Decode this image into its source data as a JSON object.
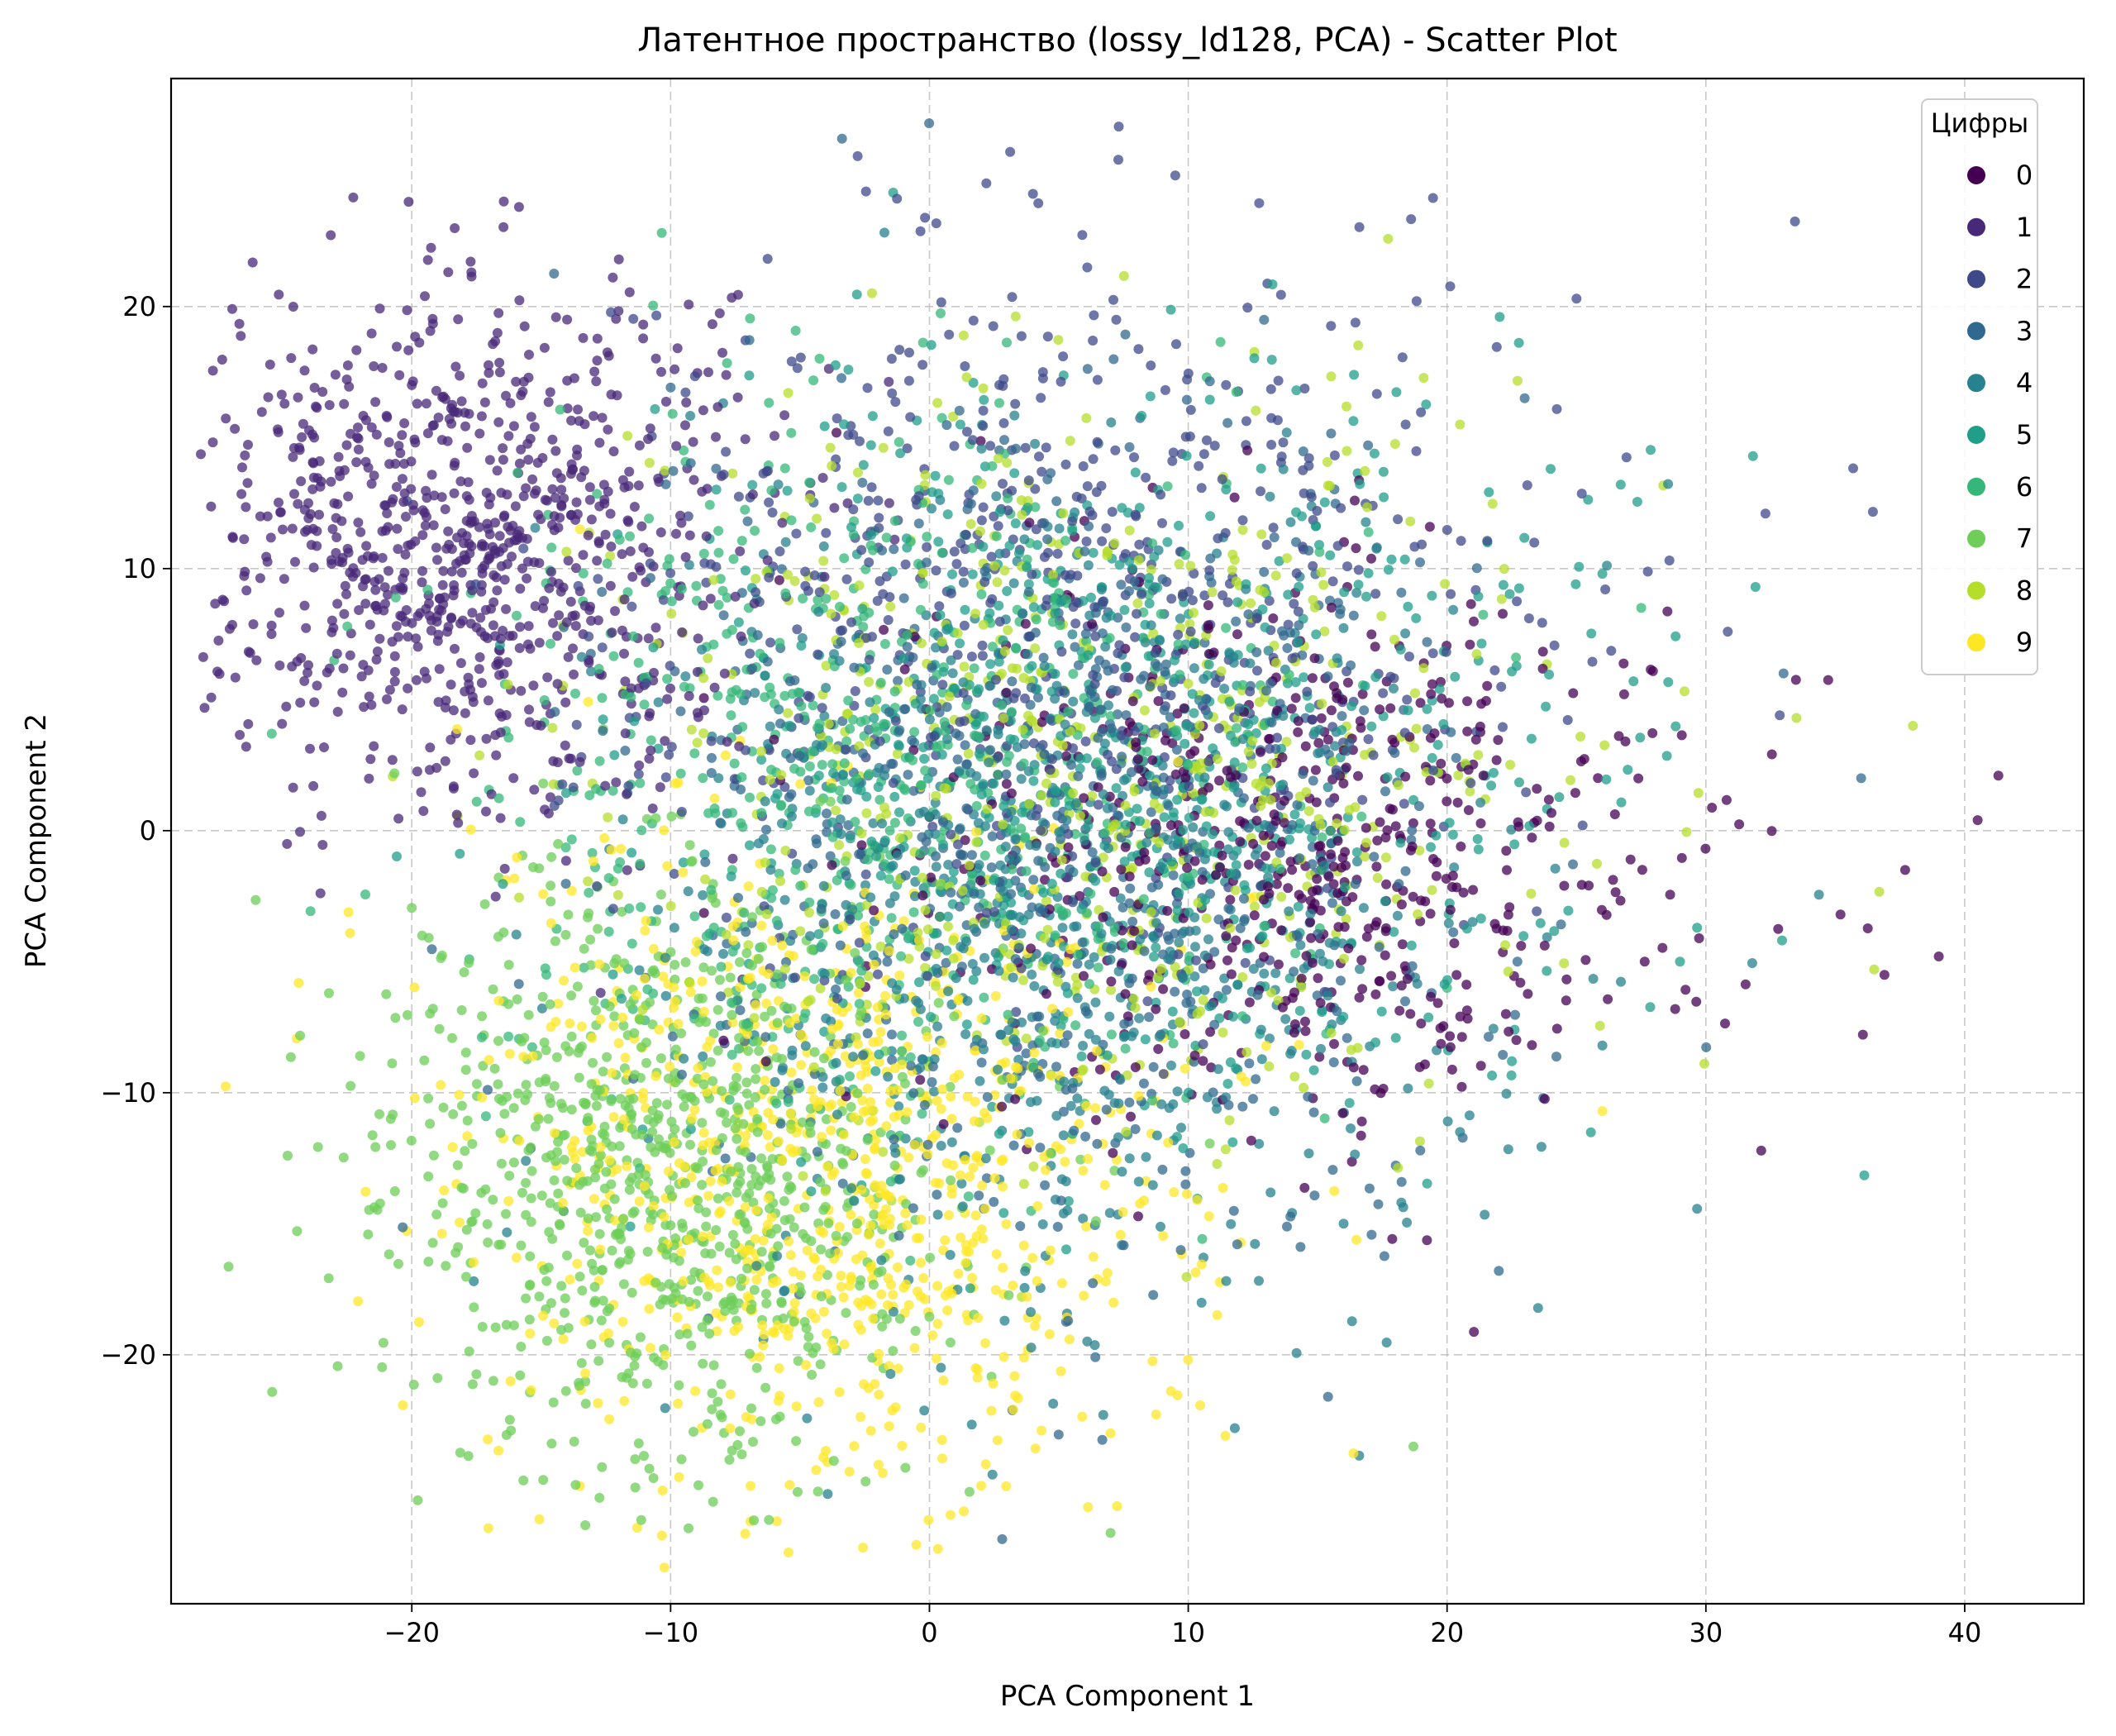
{
  "chart_data": {
    "type": "scatter",
    "title": "Латентное пространство (lossy_ld128, PCA) - Scatter Plot",
    "xlabel": "PCA Component 1",
    "ylabel": "PCA Component 2",
    "xlim": [
      -29.3,
      44.6
    ],
    "ylim": [
      -29.5,
      28.7
    ],
    "xticks": [
      -20,
      -10,
      0,
      10,
      20,
      30,
      40
    ],
    "yticks": [
      -20,
      -10,
      0,
      10,
      20
    ],
    "xtick_labels": [
      "−20",
      "−10",
      "0",
      "10",
      "20",
      "30",
      "40"
    ],
    "ytick_labels": [
      "−20",
      "−10",
      "0",
      "10",
      "20"
    ],
    "grid": true,
    "legend": {
      "title": "Цифры",
      "placement": "top-right"
    },
    "series": [
      {
        "name": "0",
        "color": "#440154",
        "center": [
          14,
          -1
        ],
        "spread": [
          7.5,
          5
        ],
        "count": 620,
        "points": [
          [
            36.9,
            -5.5
          ],
          [
            41.3,
            2.1
          ],
          [
            40.5,
            0.4
          ],
          [
            39,
            -4.8
          ],
          [
            37.7,
            -1.5
          ],
          [
            35.2,
            -3.2
          ]
        ]
      },
      {
        "name": "1",
        "color": "#482878",
        "center": [
          -18,
          11
        ],
        "spread": [
          5.5,
          5
        ],
        "count": 900,
        "points": [
          [
            -26,
            6.5
          ],
          [
            -24,
            12.5
          ],
          [
            -12,
            21.8
          ],
          [
            -20,
            17
          ],
          [
            -14,
            19.5
          ]
        ]
      },
      {
        "name": "2",
        "color": "#3e4989",
        "center": [
          5,
          9
        ],
        "spread": [
          9,
          7
        ],
        "count": 640,
        "points": [
          [
            7.3,
            25.6
          ],
          [
            9.5,
            25
          ],
          [
            25,
            20.3
          ],
          [
            32.3,
            12.1
          ],
          [
            2.2,
            24.7
          ],
          [
            4,
            24.3
          ]
        ]
      },
      {
        "name": "3",
        "color": "#31688e",
        "center": [
          5,
          0
        ],
        "spread": [
          8,
          8
        ],
        "count": 700,
        "points": [
          [
            23,
            16.5
          ],
          [
            36,
            2
          ],
          [
            33,
            6
          ],
          [
            22,
            -16.8
          ],
          [
            15.4,
            -21.6
          ]
        ]
      },
      {
        "name": "4",
        "color": "#26828e",
        "center": [
          5,
          -3
        ],
        "spread": [
          8,
          8
        ],
        "count": 700,
        "points": [
          [
            11.8,
            -22.8
          ],
          [
            16,
            -15
          ],
          [
            20.5,
            -11.5
          ],
          [
            26,
            -8.2
          ]
        ]
      },
      {
        "name": "5",
        "color": "#1f9e89",
        "center": [
          8,
          3
        ],
        "spread": [
          9,
          7
        ],
        "count": 650,
        "points": [
          [
            24,
            13.8
          ],
          [
            26,
            9.8
          ],
          [
            29,
            -5
          ]
        ]
      },
      {
        "name": "6",
        "color": "#35b779",
        "center": [
          -2,
          2
        ],
        "spread": [
          8,
          7
        ],
        "count": 650,
        "points": [
          [
            -23,
            6.5
          ],
          [
            27.5,
            8.5
          ],
          [
            20,
            -6
          ]
        ]
      },
      {
        "name": "7",
        "color": "#6ece58",
        "center": [
          -10,
          -13
        ],
        "spread": [
          5.5,
          5.5
        ],
        "count": 900,
        "points": [
          [
            -23.2,
            -6.2
          ],
          [
            -22,
            -8.6
          ],
          [
            -6.2,
            -26.3
          ],
          [
            18.7,
            -23.5
          ],
          [
            7,
            -26.8
          ]
        ]
      },
      {
        "name": "8",
        "color": "#b5de2b",
        "center": [
          6,
          2
        ],
        "spread": [
          9,
          7
        ],
        "count": 600,
        "points": [
          [
            38,
            4
          ],
          [
            36.5,
            -5.3
          ],
          [
            20.5,
            15.5
          ],
          [
            33.5,
            4.3
          ]
        ]
      },
      {
        "name": "9",
        "color": "#fde725",
        "center": [
          -4,
          -13
        ],
        "spread": [
          7,
          6
        ],
        "count": 850,
        "points": [
          [
            26,
            -10.7
          ],
          [
            7,
            -23
          ],
          [
            -13.5,
            11.5
          ],
          [
            2,
            -25
          ]
        ]
      }
    ]
  }
}
